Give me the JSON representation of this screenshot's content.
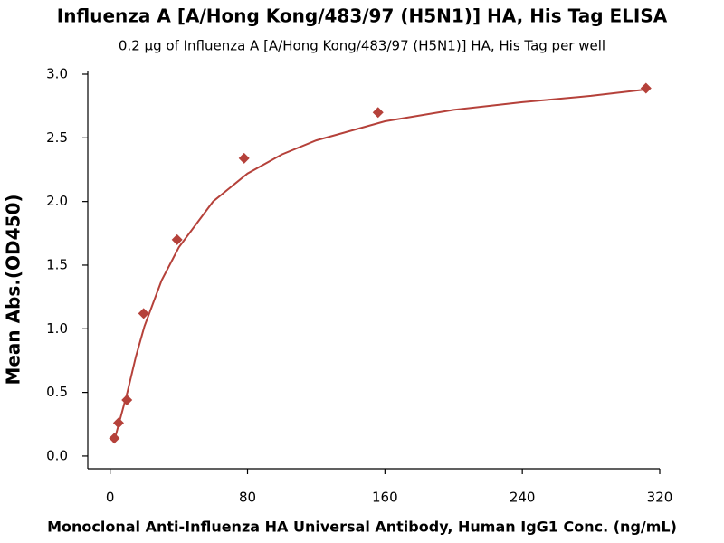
{
  "chart_data": {
    "type": "scatter",
    "title": "Influenza A [A/Hong Kong/483/97 (H5N1)] HA, His Tag ELISA",
    "subtitle": "0.2 μg of Influenza A [A/Hong Kong/483/97 (H5N1)] HA, His Tag per well",
    "xlabel": "Monoclonal Anti-Influenza HA Universal Antibody, Human IgG1 Conc. (ng/mL)",
    "ylabel": "Mean Abs.(OD450)",
    "series": [
      {
        "color": "#b5413a",
        "marker": "diamond",
        "x": [
          2.44,
          4.88,
          9.77,
          19.5,
          39,
          78,
          156,
          312
        ],
        "values": [
          0.14,
          0.26,
          0.44,
          1.12,
          1.7,
          2.34,
          2.7,
          2.89
        ]
      }
    ],
    "fit": {
      "color": "#b5413a",
      "x": [
        2,
        5,
        10,
        15,
        20,
        30,
        40,
        60,
        80,
        100,
        120,
        160,
        200,
        240,
        280,
        312
      ],
      "values": [
        0.1,
        0.25,
        0.5,
        0.78,
        1.02,
        1.38,
        1.64,
        2.0,
        2.22,
        2.37,
        2.48,
        2.63,
        2.72,
        2.78,
        2.83,
        2.88
      ]
    },
    "xlim": [
      -13,
      320
    ],
    "ylim": [
      -0.1,
      3.0
    ],
    "xticks": [
      0,
      80,
      160,
      240,
      320
    ],
    "yticks": [
      {
        "value": 0,
        "label": "0.0"
      },
      {
        "value": 0.5,
        "label": "0.5"
      },
      {
        "value": 1,
        "label": "1.0"
      },
      {
        "value": 1.5,
        "label": "1.5"
      },
      {
        "value": 2,
        "label": "2.0"
      },
      {
        "value": 2.5,
        "label": "2.5"
      },
      {
        "value": 3,
        "label": "3.0"
      }
    ]
  }
}
